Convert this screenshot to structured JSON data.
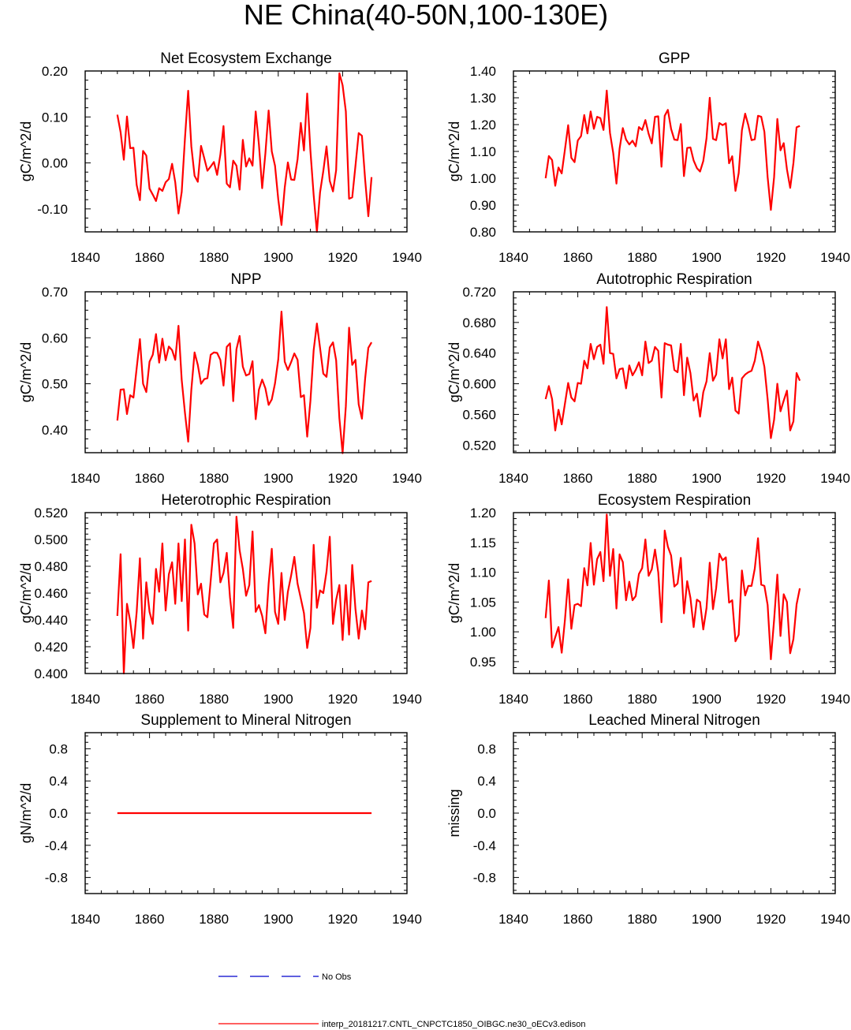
{
  "page_title": "NE China(40-50N,100-130E)",
  "colors": {
    "model": "#ff0000",
    "obs": "#0000cc",
    "axis": "#000000"
  },
  "legend": [
    {
      "label": "No Obs",
      "style": "dashed",
      "color": "#0000cc"
    },
    {
      "label": "interp_20181217.CNTL_CNPCTC1850_OIBGC.ne30_oECv3.edison",
      "style": "solid",
      "color": "#ff0000"
    }
  ],
  "chart_data": [
    {
      "type": "line",
      "title": "Net Ecosystem Exchange",
      "ylabel": "gC/m^2/d",
      "xlim": [
        1840,
        1940
      ],
      "ylim": [
        -0.15,
        0.2
      ],
      "xticks": [
        1840,
        1860,
        1880,
        1900,
        1920,
        1940
      ],
      "xtick_labels": [
        "1840",
        "1860",
        "1880",
        "1900",
        "1920",
        "1940"
      ],
      "yticks": [
        -0.1,
        0.0,
        0.1,
        0.2
      ],
      "ytick_labels": [
        "-0.10",
        "0.00",
        "0.10",
        "0.20"
      ],
      "x_start": 1850,
      "series": [
        {
          "name": "model",
          "values": [
            0.105,
            0.067,
            0.007,
            0.101,
            0.032,
            0.033,
            -0.048,
            -0.081,
            0.026,
            0.016,
            -0.056,
            -0.069,
            -0.083,
            -0.055,
            -0.061,
            -0.042,
            -0.035,
            -0.002,
            -0.042,
            -0.11,
            -0.063,
            0.053,
            0.157,
            0.036,
            -0.028,
            -0.041,
            0.037,
            0.01,
            -0.017,
            -0.008,
            0.002,
            -0.026,
            0.018,
            0.08,
            -0.045,
            -0.053,
            0.005,
            -0.006,
            -0.058,
            0.05,
            -0.008,
            0.01,
            -0.006,
            0.112,
            0.04,
            -0.055,
            0.021,
            0.114,
            0.025,
            -0.006,
            -0.079,
            -0.135,
            -0.054,
            0.001,
            -0.036,
            -0.037,
            0.008,
            0.087,
            0.027,
            0.151,
            0.026,
            -0.07,
            -0.15,
            -0.064,
            -0.018,
            0.036,
            -0.039,
            -0.062,
            -0.016,
            0.195,
            0.169,
            0.112,
            -0.078,
            -0.075,
            -0.006,
            0.065,
            0.059,
            -0.037,
            -0.116,
            -0.031
          ]
        }
      ]
    },
    {
      "type": "line",
      "title": "GPP",
      "ylabel": "gC/m^2/d",
      "xlim": [
        1840,
        1940
      ],
      "ylim": [
        0.8,
        1.4
      ],
      "xticks": [
        1840,
        1860,
        1880,
        1900,
        1920,
        1940
      ],
      "xtick_labels": [
        "1840",
        "1860",
        "1880",
        "1900",
        "1920",
        "1940"
      ],
      "yticks": [
        0.8,
        0.9,
        1.0,
        1.1,
        1.2,
        1.3,
        1.4
      ],
      "ytick_labels": [
        "0.80",
        "0.90",
        "1.00",
        "1.10",
        "1.20",
        "1.30",
        "1.40"
      ],
      "x_start": 1850,
      "series": [
        {
          "name": "model",
          "values": [
            1.0,
            1.083,
            1.068,
            0.972,
            1.04,
            1.018,
            1.107,
            1.198,
            1.076,
            1.06,
            1.141,
            1.157,
            1.236,
            1.167,
            1.249,
            1.184,
            1.229,
            1.224,
            1.18,
            1.327,
            1.169,
            1.094,
            0.98,
            1.111,
            1.187,
            1.144,
            1.126,
            1.14,
            1.119,
            1.191,
            1.18,
            1.217,
            1.166,
            1.13,
            1.229,
            1.231,
            1.043,
            1.233,
            1.255,
            1.184,
            1.144,
            1.142,
            1.202,
            1.008,
            1.113,
            1.115,
            1.066,
            1.038,
            1.025,
            1.064,
            1.149,
            1.3,
            1.147,
            1.142,
            1.206,
            1.198,
            1.205,
            1.056,
            1.082,
            0.953,
            1.019,
            1.179,
            1.241,
            1.198,
            1.142,
            1.145,
            1.233,
            1.229,
            1.173,
            1.004,
            0.882,
            1.004,
            1.221,
            1.104,
            1.131,
            1.033,
            0.964,
            1.057,
            1.19,
            1.195
          ]
        }
      ]
    },
    {
      "type": "line",
      "title": "NPP",
      "ylabel": "gC/m^2/d",
      "xlim": [
        1840,
        1940
      ],
      "ylim": [
        0.35,
        0.7
      ],
      "xticks": [
        1840,
        1860,
        1880,
        1900,
        1920,
        1940
      ],
      "xtick_labels": [
        "1840",
        "1860",
        "1880",
        "1900",
        "1920",
        "1940"
      ],
      "yticks": [
        0.4,
        0.5,
        0.6,
        0.7
      ],
      "ytick_labels": [
        "0.40",
        "0.50",
        "0.60",
        "0.70"
      ],
      "x_start": 1850,
      "series": [
        {
          "name": "model",
          "values": [
            0.42,
            0.487,
            0.488,
            0.434,
            0.475,
            0.47,
            0.534,
            0.597,
            0.5,
            0.482,
            0.548,
            0.563,
            0.608,
            0.546,
            0.598,
            0.551,
            0.581,
            0.573,
            0.552,
            0.626,
            0.508,
            0.437,
            0.374,
            0.487,
            0.568,
            0.541,
            0.5,
            0.51,
            0.512,
            0.563,
            0.568,
            0.567,
            0.552,
            0.496,
            0.58,
            0.588,
            0.462,
            0.575,
            0.604,
            0.537,
            0.518,
            0.521,
            0.549,
            0.423,
            0.487,
            0.509,
            0.49,
            0.454,
            0.466,
            0.501,
            0.553,
            0.657,
            0.548,
            0.53,
            0.547,
            0.566,
            0.552,
            0.471,
            0.475,
            0.385,
            0.463,
            0.573,
            0.631,
            0.578,
            0.522,
            0.515,
            0.579,
            0.59,
            0.551,
            0.425,
            0.349,
            0.451,
            0.622,
            0.541,
            0.552,
            0.455,
            0.424,
            0.512,
            0.578,
            0.59
          ]
        }
      ]
    },
    {
      "type": "line",
      "title": "Autotrophic Respiration",
      "ylabel": "gC/m^2/d",
      "xlim": [
        1840,
        1940
      ],
      "ylim": [
        0.51,
        0.72
      ],
      "xticks": [
        1840,
        1860,
        1880,
        1900,
        1920,
        1940
      ],
      "xtick_labels": [
        "1840",
        "1860",
        "1880",
        "1900",
        "1920",
        "1940"
      ],
      "yticks": [
        0.52,
        0.56,
        0.6,
        0.64,
        0.68,
        0.72
      ],
      "ytick_labels": [
        "0.520",
        "0.560",
        "0.600",
        "0.640",
        "0.680",
        "0.720"
      ],
      "x_start": 1850,
      "series": [
        {
          "name": "model",
          "values": [
            0.58,
            0.597,
            0.58,
            0.539,
            0.566,
            0.547,
            0.574,
            0.601,
            0.582,
            0.577,
            0.601,
            0.6,
            0.63,
            0.62,
            0.652,
            0.632,
            0.648,
            0.651,
            0.626,
            0.7,
            0.64,
            0.639,
            0.607,
            0.619,
            0.62,
            0.594,
            0.624,
            0.611,
            0.618,
            0.628,
            0.611,
            0.655,
            0.627,
            0.63,
            0.648,
            0.643,
            0.582,
            0.653,
            0.651,
            0.65,
            0.618,
            0.615,
            0.652,
            0.585,
            0.634,
            0.614,
            0.578,
            0.587,
            0.557,
            0.589,
            0.603,
            0.64,
            0.604,
            0.612,
            0.658,
            0.633,
            0.658,
            0.593,
            0.608,
            0.565,
            0.561,
            0.607,
            0.612,
            0.615,
            0.617,
            0.63,
            0.655,
            0.642,
            0.622,
            0.58,
            0.529,
            0.553,
            0.6,
            0.564,
            0.578,
            0.591,
            0.539,
            0.551,
            0.614,
            0.604
          ]
        }
      ]
    },
    {
      "type": "line",
      "title": "Heterotrophic Respiration",
      "ylabel": "gC/m^2/d",
      "xlim": [
        1840,
        1940
      ],
      "ylim": [
        0.4,
        0.52
      ],
      "xticks": [
        1840,
        1860,
        1880,
        1900,
        1920,
        1940
      ],
      "xtick_labels": [
        "1840",
        "1860",
        "1880",
        "1900",
        "1920",
        "1940"
      ],
      "yticks": [
        0.4,
        0.42,
        0.44,
        0.46,
        0.48,
        0.5,
        0.52
      ],
      "ytick_labels": [
        "0.400",
        "0.420",
        "0.440",
        "0.460",
        "0.480",
        "0.500",
        "0.520"
      ],
      "x_start": 1850,
      "series": [
        {
          "name": "model",
          "values": [
            0.443,
            0.489,
            0.4,
            0.452,
            0.439,
            0.419,
            0.446,
            0.486,
            0.426,
            0.468,
            0.446,
            0.437,
            0.478,
            0.461,
            0.497,
            0.447,
            0.474,
            0.483,
            0.452,
            0.497,
            0.454,
            0.5,
            0.432,
            0.511,
            0.497,
            0.459,
            0.467,
            0.444,
            0.442,
            0.469,
            0.497,
            0.5,
            0.468,
            0.475,
            0.49,
            0.457,
            0.434,
            0.517,
            0.492,
            0.478,
            0.458,
            0.466,
            0.506,
            0.446,
            0.451,
            0.443,
            0.43,
            0.467,
            0.493,
            0.446,
            0.437,
            0.475,
            0.44,
            0.461,
            0.473,
            0.487,
            0.467,
            0.456,
            0.445,
            0.419,
            0.434,
            0.496,
            0.449,
            0.462,
            0.46,
            0.476,
            0.502,
            0.437,
            0.455,
            0.466,
            0.425,
            0.466,
            0.429,
            0.481,
            0.448,
            0.426,
            0.447,
            0.433,
            0.468,
            0.469
          ]
        }
      ]
    },
    {
      "type": "line",
      "title": "Ecosystem Respiration",
      "ylabel": "gC/m^2/d",
      "xlim": [
        1840,
        1940
      ],
      "ylim": [
        0.93,
        1.2
      ],
      "xticks": [
        1840,
        1860,
        1880,
        1900,
        1920,
        1940
      ],
      "xtick_labels": [
        "1840",
        "1860",
        "1880",
        "1900",
        "1920",
        "1940"
      ],
      "yticks": [
        0.95,
        1.0,
        1.05,
        1.1,
        1.15,
        1.2
      ],
      "ytick_labels": [
        "0.95",
        "1.00",
        "1.05",
        "1.10",
        "1.15",
        "1.20"
      ],
      "x_start": 1850,
      "series": [
        {
          "name": "model",
          "values": [
            1.023,
            1.086,
            0.974,
            0.991,
            1.008,
            0.965,
            1.02,
            1.088,
            1.005,
            1.045,
            1.047,
            1.043,
            1.107,
            1.078,
            1.149,
            1.079,
            1.122,
            1.134,
            1.085,
            1.197,
            1.094,
            1.139,
            1.039,
            1.13,
            1.117,
            1.053,
            1.084,
            1.053,
            1.06,
            1.097,
            1.107,
            1.155,
            1.094,
            1.105,
            1.138,
            1.1,
            1.016,
            1.17,
            1.143,
            1.128,
            1.076,
            1.081,
            1.124,
            1.031,
            1.085,
            1.057,
            1.008,
            1.054,
            1.05,
            1.004,
            1.04,
            1.116,
            1.038,
            1.073,
            1.131,
            1.12,
            1.125,
            1.049,
            1.053,
            0.984,
            0.995,
            1.103,
            1.061,
            1.077,
            1.077,
            1.106,
            1.157,
            1.079,
            1.077,
            1.045,
            0.954,
            1.02,
            1.096,
            0.993,
            1.063,
            1.05,
            0.964,
            0.988,
            1.046,
            1.073
          ]
        }
      ]
    },
    {
      "type": "line",
      "title": "Supplement to Mineral Nitrogen",
      "ylabel": "gN/m^2/d",
      "xlim": [
        1840,
        1940
      ],
      "ylim": [
        -1.0,
        1.0
      ],
      "xticks": [
        1840,
        1860,
        1880,
        1900,
        1920,
        1940
      ],
      "xtick_labels": [
        "1840",
        "1860",
        "1880",
        "1900",
        "1920",
        "1940"
      ],
      "yticks": [
        -0.8,
        -0.4,
        0.0,
        0.4,
        0.8
      ],
      "ytick_labels": [
        "-0.8",
        "-0.4",
        "0.0",
        "0.4",
        "0.8"
      ],
      "x_start": 1850,
      "series": [
        {
          "name": "model",
          "values": [
            0,
            0,
            0,
            0,
            0,
            0,
            0,
            0,
            0,
            0,
            0,
            0,
            0,
            0,
            0,
            0,
            0,
            0,
            0,
            0,
            0,
            0,
            0,
            0,
            0,
            0,
            0,
            0,
            0,
            0,
            0,
            0,
            0,
            0,
            0,
            0,
            0,
            0,
            0,
            0,
            0,
            0,
            0,
            0,
            0,
            0,
            0,
            0,
            0,
            0,
            0,
            0,
            0,
            0,
            0,
            0,
            0,
            0,
            0,
            0,
            0,
            0,
            0,
            0,
            0,
            0,
            0,
            0,
            0,
            0,
            0,
            0,
            0,
            0,
            0,
            0,
            0,
            0,
            0,
            0
          ]
        }
      ]
    },
    {
      "type": "line",
      "title": "Leached Mineral Nitrogen",
      "ylabel": "missing",
      "xlim": [
        1840,
        1940
      ],
      "ylim": [
        -1.0,
        1.0
      ],
      "xticks": [
        1840,
        1860,
        1880,
        1900,
        1920,
        1940
      ],
      "xtick_labels": [
        "1840",
        "1860",
        "1880",
        "1900",
        "1920",
        "1940"
      ],
      "yticks": [
        -0.8,
        -0.4,
        0.0,
        0.4,
        0.8
      ],
      "ytick_labels": [
        "-0.8",
        "-0.4",
        "0.0",
        "0.4",
        "0.8"
      ],
      "x_start": 1850,
      "series": []
    }
  ]
}
